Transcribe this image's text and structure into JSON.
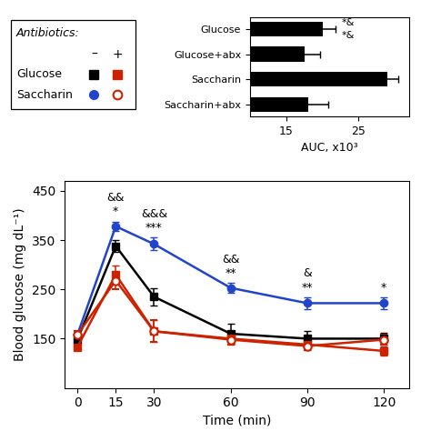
{
  "chart_data": [
    {
      "type": "line",
      "x": [
        0,
        15,
        30,
        60,
        90,
        120
      ],
      "xlabel": "Time (min)",
      "ylabel": "Blood glucose (mg dL⁻¹)",
      "xlim": [
        -5,
        130
      ],
      "ylim": [
        50,
        470
      ],
      "xticks": [
        0,
        15,
        30,
        60,
        90,
        120
      ],
      "yticks": [
        150,
        250,
        350,
        450
      ],
      "legend_title": "Antibiotics:",
      "series": [
        {
          "name": "Glucose",
          "antibiotics": "–",
          "color": "#000000",
          "marker": "square",
          "values": [
            148,
            338,
            235,
            160,
            150,
            150
          ],
          "errors": [
            7,
            12,
            18,
            20,
            15,
            12
          ]
        },
        {
          "name": "Glucose",
          "antibiotics": "+",
          "color": "#cc2200",
          "marker": "square",
          "values": [
            133,
            280,
            165,
            150,
            138,
            125
          ],
          "errors": [
            7,
            18,
            22,
            12,
            12,
            10
          ]
        },
        {
          "name": "Saccharin",
          "antibiotics": "–",
          "color": "#2244cc",
          "marker": "circle",
          "values": [
            158,
            378,
            342,
            253,
            222,
            222
          ],
          "errors": [
            7,
            10,
            13,
            10,
            12,
            12
          ]
        },
        {
          "name": "Saccharin",
          "antibiotics": "+",
          "color": "#cc2200",
          "marker": "open_circle",
          "values": [
            158,
            268,
            165,
            148,
            135,
            148
          ],
          "errors": [
            7,
            18,
            22,
            10,
            8,
            10
          ]
        }
      ],
      "annotations": [
        {
          "x": 15,
          "text": "&&"
        },
        {
          "x": 15,
          "text": "*"
        },
        {
          "x": 30,
          "text": "&&&"
        },
        {
          "x": 30,
          "text": "***"
        },
        {
          "x": 60,
          "text": "&&"
        },
        {
          "x": 60,
          "text": "**"
        },
        {
          "x": 90,
          "text": "&"
        },
        {
          "x": 90,
          "text": "**"
        },
        {
          "x": 120,
          "text": "*"
        }
      ]
    },
    {
      "type": "bar",
      "orientation": "horizontal",
      "categories": [
        "Saccharin+abx",
        "Saccharin",
        "Glucose+abx",
        "Glucose"
      ],
      "values": [
        18.0,
        29.0,
        17.5,
        20.0
      ],
      "errors": [
        2.8,
        1.5,
        2.2,
        1.8
      ],
      "color": "#000000",
      "xlabel": "AUC, x10³",
      "xlim": [
        10,
        32
      ],
      "xticks": [
        15,
        25
      ],
      "annotations": [
        {
          "category": "Glucose",
          "text": "*&"
        },
        {
          "category": "Glucose",
          "text": "*&"
        }
      ]
    }
  ]
}
